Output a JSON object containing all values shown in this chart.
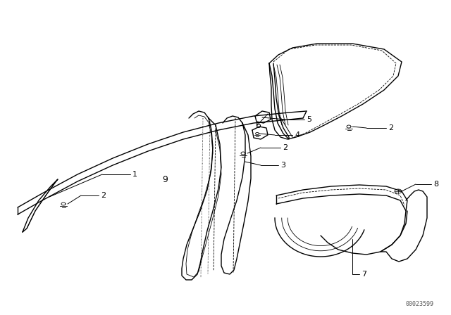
{
  "background_color": "#ffffff",
  "line_color": "#000000",
  "watermark": "00023599",
  "lw_main": 1.0,
  "lw_thin": 0.6
}
